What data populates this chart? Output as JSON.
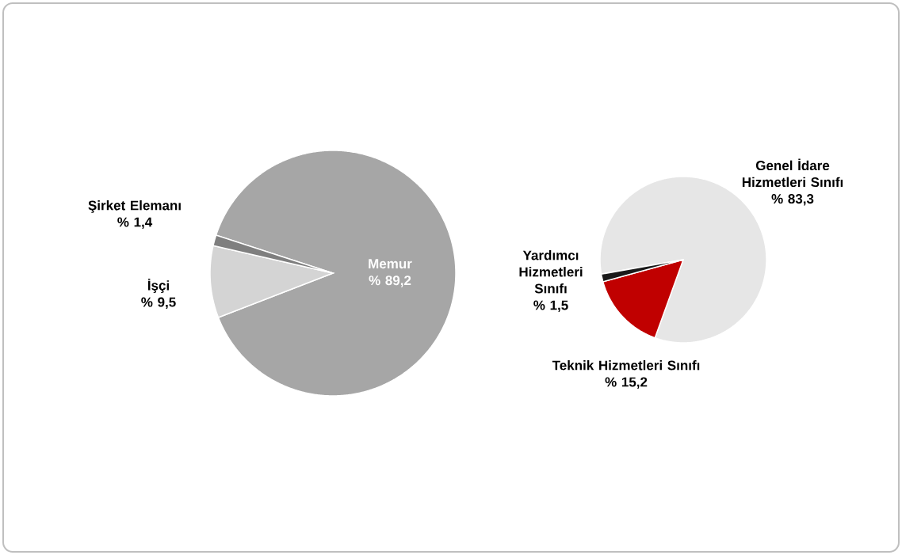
{
  "chart_data": [
    {
      "type": "pie",
      "categories": [
        "Memur",
        "İşçi",
        "Şirket Elemanı"
      ],
      "values": [
        89.2,
        9.5,
        1.4
      ],
      "colors": [
        "#a6a6a6",
        "#d4d4d4",
        "#7f7f7f"
      ],
      "value_labels": [
        "% 89,2",
        "% 9,5",
        "% 1,4"
      ]
    },
    {
      "type": "pie",
      "categories": [
        "Genel İdare Hizmetleri Sınıfı",
        "Teknik Hizmetleri Sınıfı",
        "Yardımcı Hizmetleri Sınıfı"
      ],
      "values": [
        83.3,
        15.2,
        1.5
      ],
      "colors": [
        "#e6e6e6",
        "#c00000",
        "#1a1a1a"
      ],
      "value_labels": [
        "% 83,3",
        "% 15,2",
        "% 1,5"
      ]
    }
  ]
}
